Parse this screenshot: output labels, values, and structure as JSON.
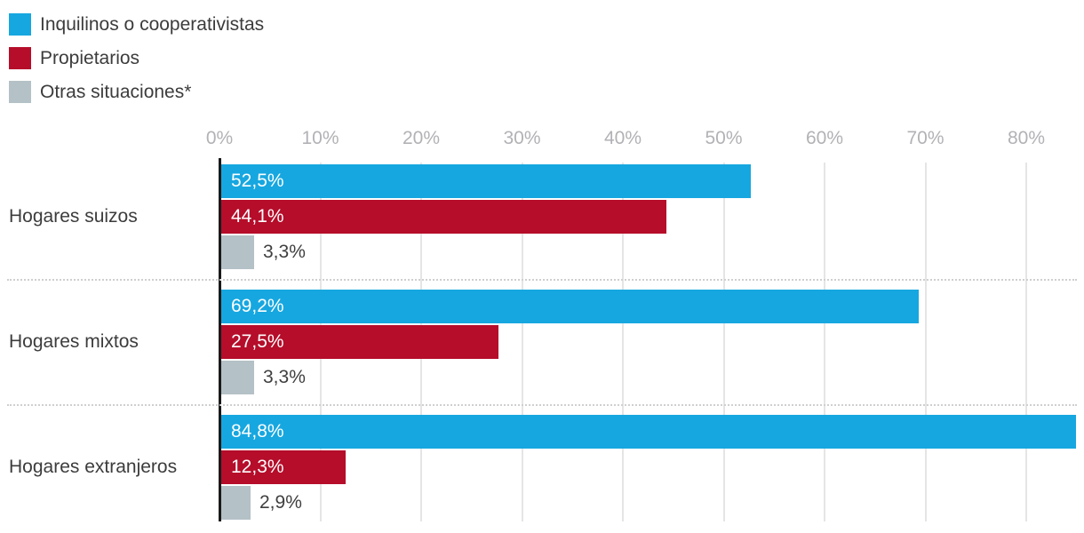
{
  "colors": {
    "blue": "#16a7e0",
    "red": "#b50d2a",
    "gray": "#b4c1c6",
    "axis_label": "#b2b2b6",
    "text": "#3c3c3c",
    "gridline": "#e5e5e5",
    "zero_line": "#1a1a1a",
    "separator": "#cfcfcf",
    "inside_label": "#ffffff"
  },
  "legend": {
    "items": [
      {
        "label": "Inquilinos o cooperativistas",
        "color": "#16a7e0"
      },
      {
        "label": "Propietarios",
        "color": "#b50d2a"
      },
      {
        "label": "Otras situaciones*",
        "color": "#b4c1c6"
      }
    ]
  },
  "chart_data": {
    "type": "bar",
    "orientation": "horizontal",
    "title": "",
    "xlabel": "",
    "ylabel": "",
    "categories": [
      "Hogares suizos",
      "Hogares mixtos",
      "Hogares extranjeros"
    ],
    "series": [
      {
        "name": "Inquilinos o cooperativistas",
        "color": "#16a7e0",
        "values": [
          52.5,
          69.2,
          84.8
        ],
        "labels": [
          "52,5%",
          "69,2%",
          "84,8%"
        ],
        "label_position": "inside"
      },
      {
        "name": "Propietarios",
        "color": "#b50d2a",
        "values": [
          44.1,
          27.5,
          12.3
        ],
        "labels": [
          "44,1%",
          "27,5%",
          "12,3%"
        ],
        "label_position": "inside"
      },
      {
        "name": "Otras situaciones*",
        "color": "#b4c1c6",
        "values": [
          3.3,
          3.3,
          2.9
        ],
        "labels": [
          "3,3%",
          "3,3%",
          "2,9%"
        ],
        "label_position": "outside"
      }
    ],
    "x_axis": {
      "ticks": [
        "0%",
        "10%",
        "20%",
        "30%",
        "40%",
        "50%",
        "60%",
        "70%",
        "80%"
      ],
      "tick_values": [
        0,
        10,
        20,
        30,
        40,
        50,
        60,
        70,
        80
      ],
      "min": 0,
      "max": 85.7,
      "grid": true,
      "grid_orientation": "vertical"
    },
    "legend_position": "top-left"
  }
}
